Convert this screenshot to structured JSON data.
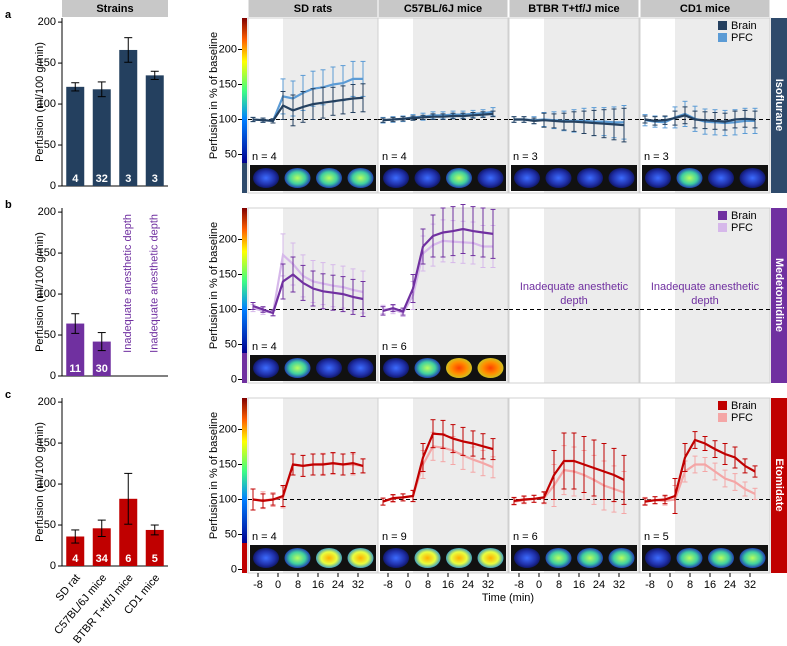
{
  "header": {
    "strains": "Strains",
    "columns": [
      "SD rats",
      "C57BL/6J mice",
      "BTBR T+tf/J mice",
      "CD1 mice"
    ]
  },
  "rows": [
    {
      "letter": "a",
      "anesthetic": "Isoflurane",
      "color": "#2e4a6b"
    },
    {
      "letter": "b",
      "anesthetic": "Medetomidine",
      "color": "#7030a0"
    },
    {
      "letter": "c",
      "anesthetic": "Etomidate",
      "color": "#c00000"
    }
  ],
  "chart_data": [
    {
      "type": "bar",
      "ylabel": "Perfusion (ml/100 g/min)",
      "color": "#24405f",
      "ylim": [
        0,
        205
      ],
      "yticks": [
        0,
        50,
        100,
        150,
        200
      ],
      "values": [
        121,
        118,
        166,
        135
      ],
      "errors": [
        5,
        9,
        15,
        5
      ],
      "n": [
        4,
        32,
        3,
        3
      ]
    },
    {
      "type": "line",
      "ylabel": "Perfusion in % of baseline",
      "xlim": [
        -12,
        40
      ],
      "ylim": [
        -5,
        245
      ],
      "yticks": [
        50,
        100,
        150,
        200
      ],
      "shade_start": 2,
      "baseline": 100,
      "x": [
        -10,
        -6,
        -2,
        2,
        6,
        10,
        14,
        18,
        22,
        26,
        30,
        34
      ],
      "series": [
        {
          "name": "Brain",
          "color": "#24405f"
        },
        {
          "name": "PFC",
          "color": "#5b9bd5"
        }
      ],
      "panels": [
        {
          "n_label": "n = 4",
          "series": [
            {
              "values": [
                100,
                99,
                98,
                120,
                113,
                118,
                122,
                124,
                126,
                128,
                130,
                131
              ],
              "errors": [
                3,
                3,
                3,
                20,
                22,
                22,
                22,
                22,
                20,
                20,
                20,
                20
              ]
            },
            {
              "values": [
                100,
                99,
                98,
                133,
                130,
                138,
                144,
                146,
                150,
                152,
                158,
                158
              ],
              "errors": [
                3,
                3,
                3,
                25,
                25,
                25,
                25,
                25,
                25,
                25,
                25,
                25
              ]
            }
          ]
        },
        {
          "n_label": "n = 4",
          "series": [
            {
              "values": [
                99,
                100,
                101,
                102,
                103,
                104,
                104,
                105,
                105,
                106,
                107,
                108
              ],
              "errors": [
                3,
                3,
                3,
                3,
                3,
                4,
                4,
                4,
                4,
                4,
                4,
                4
              ]
            },
            {
              "values": [
                99,
                100,
                101,
                103,
                104,
                106,
                106,
                107,
                107,
                108,
                109,
                111
              ],
              "errors": [
                4,
                4,
                4,
                4,
                5,
                5,
                5,
                5,
                5,
                5,
                5,
                6
              ]
            }
          ]
        },
        {
          "n_label": "n = 3",
          "series": [
            {
              "values": [
                100,
                100,
                98,
                99,
                98,
                97,
                97,
                96,
                95,
                94,
                93,
                92
              ],
              "errors": [
                4,
                4,
                4,
                10,
                10,
                12,
                14,
                16,
                18,
                20,
                22,
                24
              ]
            },
            {
              "values": [
                100,
                100,
                99,
                100,
                99,
                98,
                98,
                98,
                97,
                97,
                96,
                96
              ],
              "errors": [
                4,
                4,
                5,
                10,
                12,
                14,
                16,
                18,
                20,
                20,
                22,
                24
              ]
            }
          ]
        },
        {
          "n_label": "n = 3",
          "series": [
            {
              "values": [
                100,
                98,
                99,
                102,
                106,
                100,
                99,
                98,
                97,
                100,
                101,
                100
              ],
              "errors": [
                5,
                6,
                6,
                10,
                12,
                12,
                12,
                12,
                12,
                12,
                12,
                12
              ]
            },
            {
              "values": [
                99,
                97,
                96,
                103,
                108,
                101,
                97,
                96,
                95,
                96,
                98,
                98
              ],
              "errors": [
                8,
                8,
                8,
                15,
                18,
                18,
                18,
                18,
                18,
                18,
                18,
                18
              ]
            }
          ]
        }
      ]
    },
    {
      "type": "bar",
      "ylabel": "Perfusion (ml/100 g/min)",
      "color": "#7030a0",
      "ylim": [
        0,
        205
      ],
      "yticks": [
        0,
        50,
        100,
        150,
        200
      ],
      "values": [
        64,
        42,
        null,
        null
      ],
      "errors": [
        12,
        11,
        null,
        null
      ],
      "n": [
        11,
        30,
        null,
        null
      ],
      "value_notes": [
        null,
        null,
        "Inadequate anesthetic depth",
        "Inadequate anesthetic depth"
      ]
    },
    {
      "type": "line",
      "ylabel": "Perfusion in % of baseline",
      "xlim": [
        -12,
        40
      ],
      "ylim": [
        -5,
        245
      ],
      "yticks": [
        0,
        50,
        100,
        150,
        200
      ],
      "shade_start": 2,
      "baseline": 100,
      "x": [
        -10,
        -6,
        -2,
        2,
        6,
        10,
        14,
        18,
        22,
        26,
        30,
        34
      ],
      "series": [
        {
          "name": "Brain",
          "color": "#7030a0"
        },
        {
          "name": "PFC",
          "color": "#d6b8ea"
        }
      ],
      "panels": [
        {
          "n_label": "n = 4",
          "series": [
            {
              "values": [
                105,
                100,
                95,
                140,
                150,
                138,
                130,
                126,
                124,
                122,
                118,
                115
              ],
              "errors": [
                5,
                4,
                4,
                25,
                25,
                25,
                25,
                25,
                25,
                25,
                25,
                25
              ]
            },
            {
              "values": [
                102,
                98,
                95,
                178,
                165,
                148,
                140,
                137,
                134,
                132,
                128,
                125
              ],
              "errors": [
                5,
                5,
                4,
                30,
                30,
                30,
                30,
                30,
                30,
                30,
                30,
                30
              ]
            }
          ]
        },
        {
          "n_label": "n = 6",
          "series": [
            {
              "values": [
                98,
                102,
                97,
                130,
                190,
                205,
                210,
                212,
                215,
                212,
                210,
                208
              ],
              "errors": [
                6,
                5,
                5,
                20,
                25,
                30,
                35,
                35,
                35,
                35,
                35,
                35
              ]
            },
            {
              "values": [
                100,
                100,
                95,
                120,
                180,
                192,
                198,
                197,
                196,
                195,
                190,
                190
              ],
              "errors": [
                6,
                6,
                5,
                20,
                25,
                30,
                30,
                30,
                30,
                30,
                30,
                30
              ]
            }
          ]
        },
        {
          "note": "Inadequate anesthetic depth"
        },
        {
          "note": "Inadequate anesthetic depth"
        }
      ]
    },
    {
      "type": "bar",
      "ylabel": "Perfusion (ml/100 g/min)",
      "color": "#c00000",
      "ylim": [
        0,
        205
      ],
      "yticks": [
        0,
        50,
        100,
        150,
        200
      ],
      "categories": [
        "SD rat",
        "C57BL/6J mice",
        "BTBR T+tf/J mice",
        "CD1 mice"
      ],
      "values": [
        36,
        46,
        82,
        44
      ],
      "errors": [
        8,
        10,
        31,
        6
      ],
      "n": [
        4,
        34,
        6,
        5
      ]
    },
    {
      "type": "line",
      "ylabel": "Perfusion in % of baseline",
      "xlabel": "Time (min)",
      "xlim": [
        -12,
        40
      ],
      "ylim": [
        -5,
        245
      ],
      "yticks": [
        0,
        50,
        100,
        150,
        200
      ],
      "xticks": [
        -8,
        0,
        8,
        16,
        24,
        32
      ],
      "shade_start": 2,
      "baseline": 100,
      "x": [
        -10,
        -6,
        -2,
        2,
        6,
        10,
        14,
        18,
        22,
        26,
        30,
        34
      ],
      "series": [
        {
          "name": "Brain",
          "color": "#c00000"
        },
        {
          "name": "PFC",
          "color": "#f4a6a6"
        }
      ],
      "panels": [
        {
          "n_label": "n = 4",
          "series": [
            {
              "values": [
                100,
                98,
                100,
                105,
                150,
                148,
                150,
                150,
                152,
                150,
                152,
                148
              ],
              "errors": [
                15,
                10,
                8,
                15,
                15,
                15,
                15,
                15,
                15,
                15,
                15,
                10
              ]
            },
            {
              "values": [
                100,
                99,
                100,
                103,
                150,
                148,
                150,
                151,
                151,
                150,
                150,
                148
              ],
              "errors": [
                15,
                12,
                10,
                15,
                15,
                15,
                15,
                15,
                15,
                15,
                15,
                10
              ]
            }
          ]
        },
        {
          "n_label": "n = 9",
          "series": [
            {
              "values": [
                97,
                102,
                103,
                105,
                160,
                194,
                193,
                187,
                183,
                180,
                176,
                172
              ],
              "errors": [
                5,
                5,
                5,
                8,
                20,
                20,
                20,
                20,
                20,
                18,
                18,
                15
              ]
            },
            {
              "values": [
                97,
                101,
                103,
                105,
                150,
                176,
                174,
                170,
                163,
                157,
                152,
                146
              ],
              "errors": [
                5,
                5,
                5,
                8,
                20,
                20,
                20,
                20,
                20,
                18,
                18,
                15
              ]
            }
          ]
        },
        {
          "n_label": "n = 6",
          "series": [
            {
              "values": [
                98,
                100,
                101,
                103,
                135,
                155,
                155,
                150,
                145,
                140,
                135,
                128
              ],
              "errors": [
                5,
                5,
                5,
                8,
                35,
                40,
                40,
                40,
                40,
                40,
                38,
                35
              ]
            },
            {
              "values": [
                97,
                99,
                101,
                102,
                120,
                142,
                140,
                135,
                128,
                120,
                115,
                110
              ],
              "errors": [
                5,
                5,
                5,
                8,
                30,
                35,
                35,
                35,
                35,
                35,
                33,
                30
              ]
            }
          ]
        },
        {
          "n_label": "n = 5",
          "series": [
            {
              "values": [
                97,
                99,
                100,
                105,
                160,
                185,
                180,
                172,
                165,
                160,
                148,
                140
              ],
              "errors": [
                5,
                5,
                6,
                25,
                20,
                12,
                10,
                12,
                15,
                15,
                10,
                8
              ]
            },
            {
              "values": [
                98,
                99,
                98,
                100,
                140,
                150,
                150,
                140,
                130,
                125,
                115,
                108
              ],
              "errors": [
                5,
                5,
                6,
                20,
                15,
                12,
                10,
                12,
                12,
                12,
                10,
                8
              ]
            }
          ]
        }
      ]
    }
  ]
}
